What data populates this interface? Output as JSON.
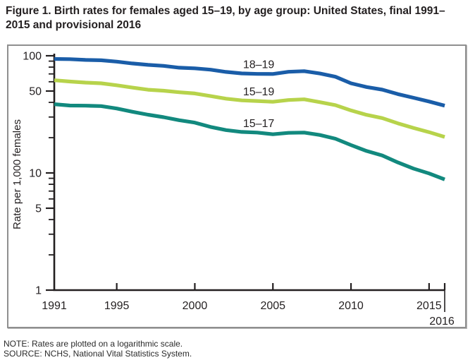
{
  "title": "Figure 1. Birth rates for females aged 15–19, by age group: United States, final 1991–2015 and provisional 2016",
  "note": "NOTE: Rates are plotted on a logarithmic scale.",
  "source": "SOURCE: NCHS, National Vital Statistics System.",
  "chart_data": {
    "type": "line",
    "title": "Birth rates for females aged 15–19, by age group: United States, final 1991–2015 and provisional 2016",
    "xlabel": "",
    "ylabel": "Rate per 1,000 females",
    "y_scale": "log",
    "ylim": [
      1,
      100
    ],
    "grid": false,
    "legend_position": "inline-labels",
    "axis_color": "#231f20",
    "y_axis": {
      "major_ticks": [
        100,
        50,
        10,
        5,
        1
      ],
      "minor_ticks": [
        90,
        80,
        70,
        60,
        40,
        30,
        20,
        9,
        8,
        7,
        6,
        4,
        3,
        2
      ]
    },
    "x_axis": {
      "ticks": [
        {
          "label": "1991",
          "year": 1991,
          "tick": false,
          "row": 1
        },
        {
          "label": "1995",
          "year": 1995,
          "tick": true,
          "row": 1
        },
        {
          "label": "2000",
          "year": 2000,
          "tick": true,
          "row": 1
        },
        {
          "label": "2005",
          "year": 2005,
          "tick": true,
          "row": 1
        },
        {
          "label": "2010",
          "year": 2010,
          "tick": true,
          "row": 1
        },
        {
          "label": "2015",
          "year": 2015,
          "tick": true,
          "row": 1
        },
        {
          "label": "2016",
          "year": 2016,
          "tick": true,
          "row": 2,
          "long_tick": true,
          "dx": -4
        }
      ]
    },
    "x": [
      1991,
      1992,
      1993,
      1994,
      1995,
      1996,
      1997,
      1998,
      1999,
      2000,
      2001,
      2002,
      2003,
      2004,
      2005,
      2006,
      2007,
      2008,
      2009,
      2010,
      2011,
      2012,
      2013,
      2014,
      2015,
      2016
    ],
    "series_label_year": 2004,
    "series": [
      {
        "name": "18–19",
        "key": "18-19",
        "color": "#1a5da8",
        "values": [
          94.0,
          93.6,
          92.1,
          91.5,
          89.1,
          86.0,
          83.6,
          82.0,
          79.1,
          78.1,
          76.1,
          72.8,
          70.7,
          70.0,
          69.9,
          73.0,
          73.9,
          70.6,
          66.2,
          58.2,
          54.1,
          51.4,
          47.1,
          43.8,
          40.7,
          37.5
        ]
      },
      {
        "name": "15–19",
        "key": "15-19",
        "color": "#b7d34b",
        "values": [
          61.8,
          60.3,
          59.0,
          58.2,
          56.0,
          53.5,
          51.3,
          50.3,
          48.8,
          47.7,
          45.3,
          43.0,
          41.6,
          41.1,
          40.5,
          41.9,
          42.5,
          40.2,
          37.9,
          34.2,
          31.3,
          29.4,
          26.5,
          24.2,
          22.3,
          20.3
        ]
      },
      {
        "name": "15–17",
        "key": "15-17",
        "color": "#12897e",
        "values": [
          38.6,
          37.6,
          37.5,
          37.2,
          35.5,
          33.3,
          31.4,
          29.9,
          28.2,
          26.9,
          24.7,
          23.2,
          22.4,
          22.1,
          21.4,
          22.0,
          22.1,
          21.1,
          19.6,
          17.3,
          15.4,
          14.1,
          12.3,
          10.9,
          9.9,
          8.8
        ]
      }
    ]
  }
}
